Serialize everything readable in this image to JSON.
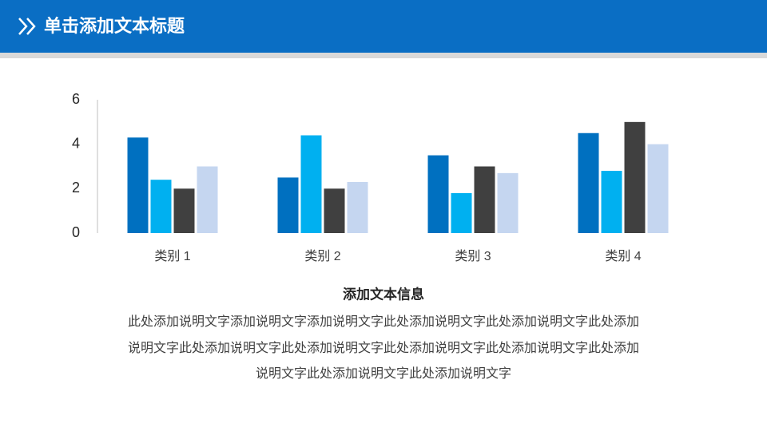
{
  "header": {
    "title": "单击添加文本标题"
  },
  "chart_data": {
    "type": "bar",
    "categories": [
      "类别 1",
      "类别 2",
      "类别 3",
      "类别 4"
    ],
    "series": [
      {
        "color": "#0070c0",
        "values": [
          4.3,
          2.5,
          3.5,
          4.5
        ]
      },
      {
        "color": "#00b0f0",
        "values": [
          2.4,
          4.4,
          1.8,
          2.8
        ]
      },
      {
        "color": "#404040",
        "values": [
          2.0,
          2.0,
          3.0,
          5.0
        ]
      },
      {
        "color": "#c5d6f0",
        "values": [
          3.0,
          2.3,
          2.7,
          4.0
        ]
      }
    ],
    "ylim": [
      0,
      6
    ],
    "yticks": [
      0,
      2,
      4,
      6
    ],
    "grid": false
  },
  "text_block": {
    "heading": "添加文本信息",
    "lines": [
      "此处添加说明文字添加说明文字添加说明文字此处添加说明文字此处添加说明文字此处添加",
      "说明文字此处添加说明文字此处添加说明文字此处添加说明文字此处添加说明文字此处添加",
      "说明文字此处添加说明文字此处添加说明文字"
    ]
  }
}
